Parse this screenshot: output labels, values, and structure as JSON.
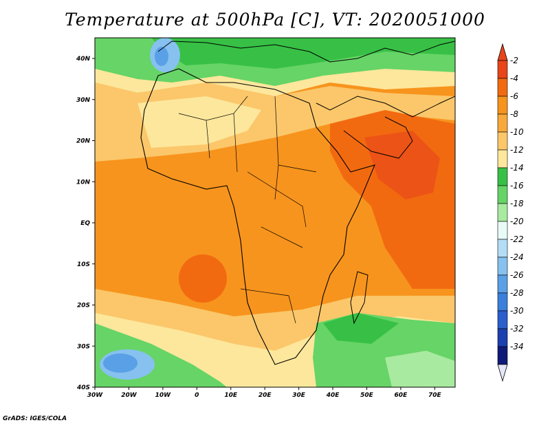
{
  "title": "Temperature at 500hPa [C], VT: 2020051000",
  "footer": "GrADS: IGES/COLA",
  "map": {
    "x_ticks": [
      "30W",
      "20W",
      "10W",
      "0",
      "10E",
      "20E",
      "30E",
      "40E",
      "50E",
      "60E",
      "70E"
    ],
    "y_ticks": [
      "40N",
      "30N",
      "20N",
      "10N",
      "EQ",
      "10S",
      "20S",
      "30S",
      "40S"
    ]
  },
  "colorbar": {
    "labels": [
      "-2",
      "-4",
      "-6",
      "-8",
      "-10",
      "-12",
      "-14",
      "-16",
      "-18",
      "-20",
      "-22",
      "-24",
      "-26",
      "-28",
      "-30",
      "-32",
      "-34"
    ],
    "colors": [
      "#e8451a",
      "#f26a10",
      "#f7941d",
      "#f9a93b",
      "#fbc76a",
      "#fde79c",
      "#37c045",
      "#66d466",
      "#a8eaa0",
      "#e8fbf7",
      "#b4dcf6",
      "#86c1ef",
      "#5aa0e6",
      "#3a7fdc",
      "#2a5fcc",
      "#1d40b0",
      "#0f1a78"
    ]
  }
}
